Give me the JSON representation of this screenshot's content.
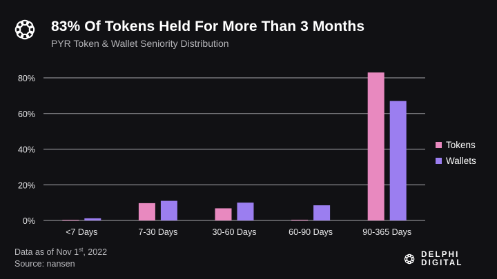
{
  "header": {
    "title": "83% Of Tokens Held For More Than 3 Months",
    "subtitle": "PYR Token & Wallet Seniority Distribution"
  },
  "footer": {
    "date_prefix": "Data as of Nov 1",
    "date_sup": "st",
    "date_suffix": ", 2022",
    "source": "Source: nansen"
  },
  "brand": {
    "name": "DELPHI DIGITAL",
    "logo_icon": "delphi-knot-icon"
  },
  "colors": {
    "background": "#111114",
    "tokens": "#E889BF",
    "wallets": "#9B7EF0",
    "grid": "#8a8a8e"
  },
  "chart_data": {
    "type": "bar",
    "title": "83% Of Tokens Held For More Than 3 Months",
    "subtitle": "PYR Token & Wallet Seniority Distribution",
    "xlabel": "",
    "ylabel": "",
    "categories": [
      "<7 Days",
      "7-30 Days",
      "30-60 Days",
      "60-90 Days",
      "90-365 Days"
    ],
    "series": [
      {
        "name": "Tokens",
        "color": "#E889BF",
        "values": [
          0.3,
          9.7,
          6.8,
          0.4,
          83.0
        ]
      },
      {
        "name": "Wallets",
        "color": "#9B7EF0",
        "values": [
          1.2,
          11.0,
          10.0,
          8.5,
          67.0
        ]
      }
    ],
    "ylim": [
      0,
      80
    ],
    "yticks": [
      0,
      20,
      40,
      60,
      80
    ],
    "ytick_labels": [
      "0%",
      "20%",
      "40%",
      "60%",
      "80%"
    ],
    "grid": true,
    "legend_position": "right"
  }
}
